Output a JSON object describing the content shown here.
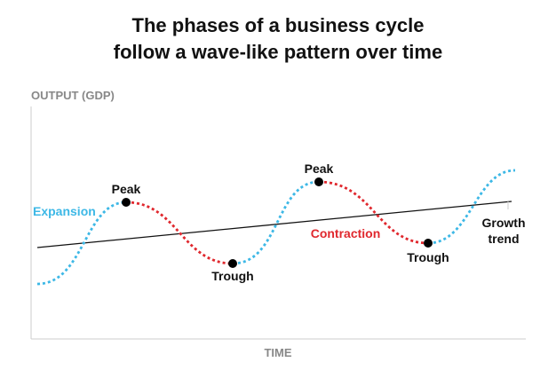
{
  "title": {
    "line1": "The phases of a business cycle",
    "line2": "follow a wave-like pattern over time"
  },
  "axes": {
    "y_label": "OUTPUT (GDP)",
    "x_label": "TIME"
  },
  "phases": {
    "expansion": "Expansion",
    "contraction": "Contraction"
  },
  "points": {
    "peak_1": "Peak",
    "trough_1": "Trough",
    "peak_2": "Peak",
    "trough_2": "Trough"
  },
  "trend": {
    "line1": "Growth",
    "line2": "trend"
  },
  "colors": {
    "expansion": "#3db8e6",
    "contraction": "#e0282e",
    "trend_line": "#111111",
    "axis": "#cccccc",
    "label_gray": "#888888",
    "text": "#111111"
  }
}
